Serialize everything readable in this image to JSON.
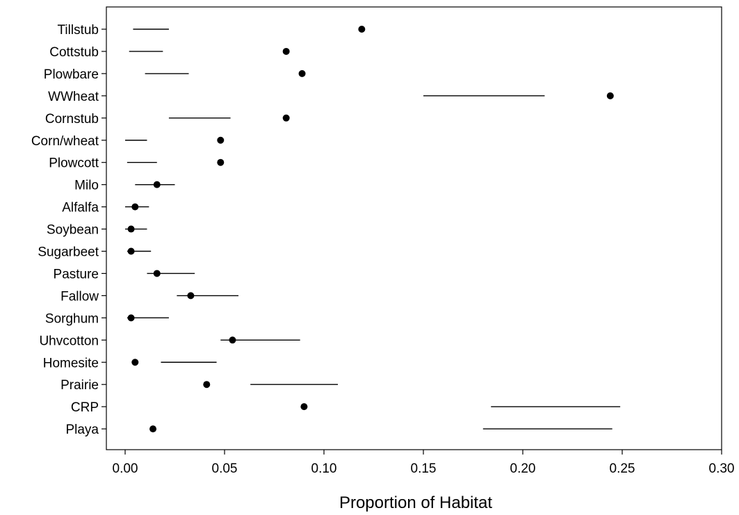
{
  "chart_data": {
    "type": "scatter",
    "title": "",
    "xlabel": "Proportion of Habitat",
    "ylabel": "",
    "xlim": [
      0.0,
      0.3
    ],
    "xticks": [
      "0.00",
      "0.05",
      "0.10",
      "0.15",
      "0.20",
      "0.25",
      "0.30"
    ],
    "grid": false,
    "categories": [
      "Tillstub",
      "Cottstub",
      "Plowbare",
      "WWheat",
      "Cornstub",
      "Corn/wheat",
      "Plowcott",
      "Milo",
      "Alfalfa",
      "Soybean",
      "Sugarbeet",
      "Pasture",
      "Fallow",
      "Sorghum",
      "Uhvcotton",
      "Homesite",
      "Prairie",
      "CRP",
      "Playa"
    ],
    "points": [
      0.119,
      0.081,
      0.089,
      0.244,
      0.081,
      0.048,
      0.048,
      0.016,
      0.005,
      0.003,
      0.003,
      0.016,
      0.033,
      0.003,
      0.054,
      0.005,
      0.041,
      0.09,
      0.014
    ],
    "intervals": [
      [
        0.004,
        0.022
      ],
      [
        0.002,
        0.019
      ],
      [
        0.01,
        0.032
      ],
      [
        0.15,
        0.211
      ],
      [
        0.022,
        0.053
      ],
      [
        0.0,
        0.011
      ],
      [
        0.001,
        0.016
      ],
      [
        0.005,
        0.025
      ],
      [
        0.0,
        0.012
      ],
      [
        0.0,
        0.011
      ],
      [
        0.001,
        0.013
      ],
      [
        0.011,
        0.035
      ],
      [
        0.026,
        0.057
      ],
      [
        0.001,
        0.022
      ],
      [
        0.048,
        0.088
      ],
      [
        0.018,
        0.046
      ],
      [
        0.063,
        0.107
      ],
      [
        0.184,
        0.249
      ],
      [
        0.18,
        0.245
      ]
    ]
  }
}
